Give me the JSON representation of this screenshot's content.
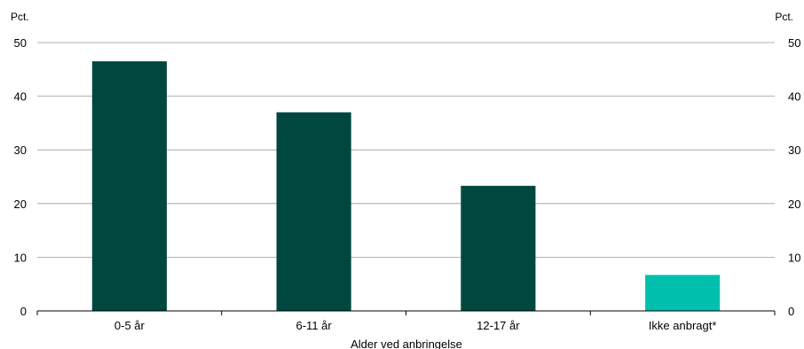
{
  "chart_data": {
    "type": "bar",
    "categories": [
      "0-5 år",
      "6-11 år",
      "12-17 år",
      "Ikke anbragt*"
    ],
    "values": [
      46.5,
      37.0,
      23.3,
      6.7
    ],
    "bar_colors": [
      "#004740",
      "#004740",
      "#004740",
      "#00c0ad"
    ],
    "ylabel_left": "Pct.",
    "ylabel_right": "Pct.",
    "xlabel": "Alder ved anbringelse",
    "ylim": [
      0,
      50
    ],
    "yticks": [
      0,
      10,
      20,
      30,
      40,
      50
    ],
    "grid": true,
    "legend": "none"
  }
}
